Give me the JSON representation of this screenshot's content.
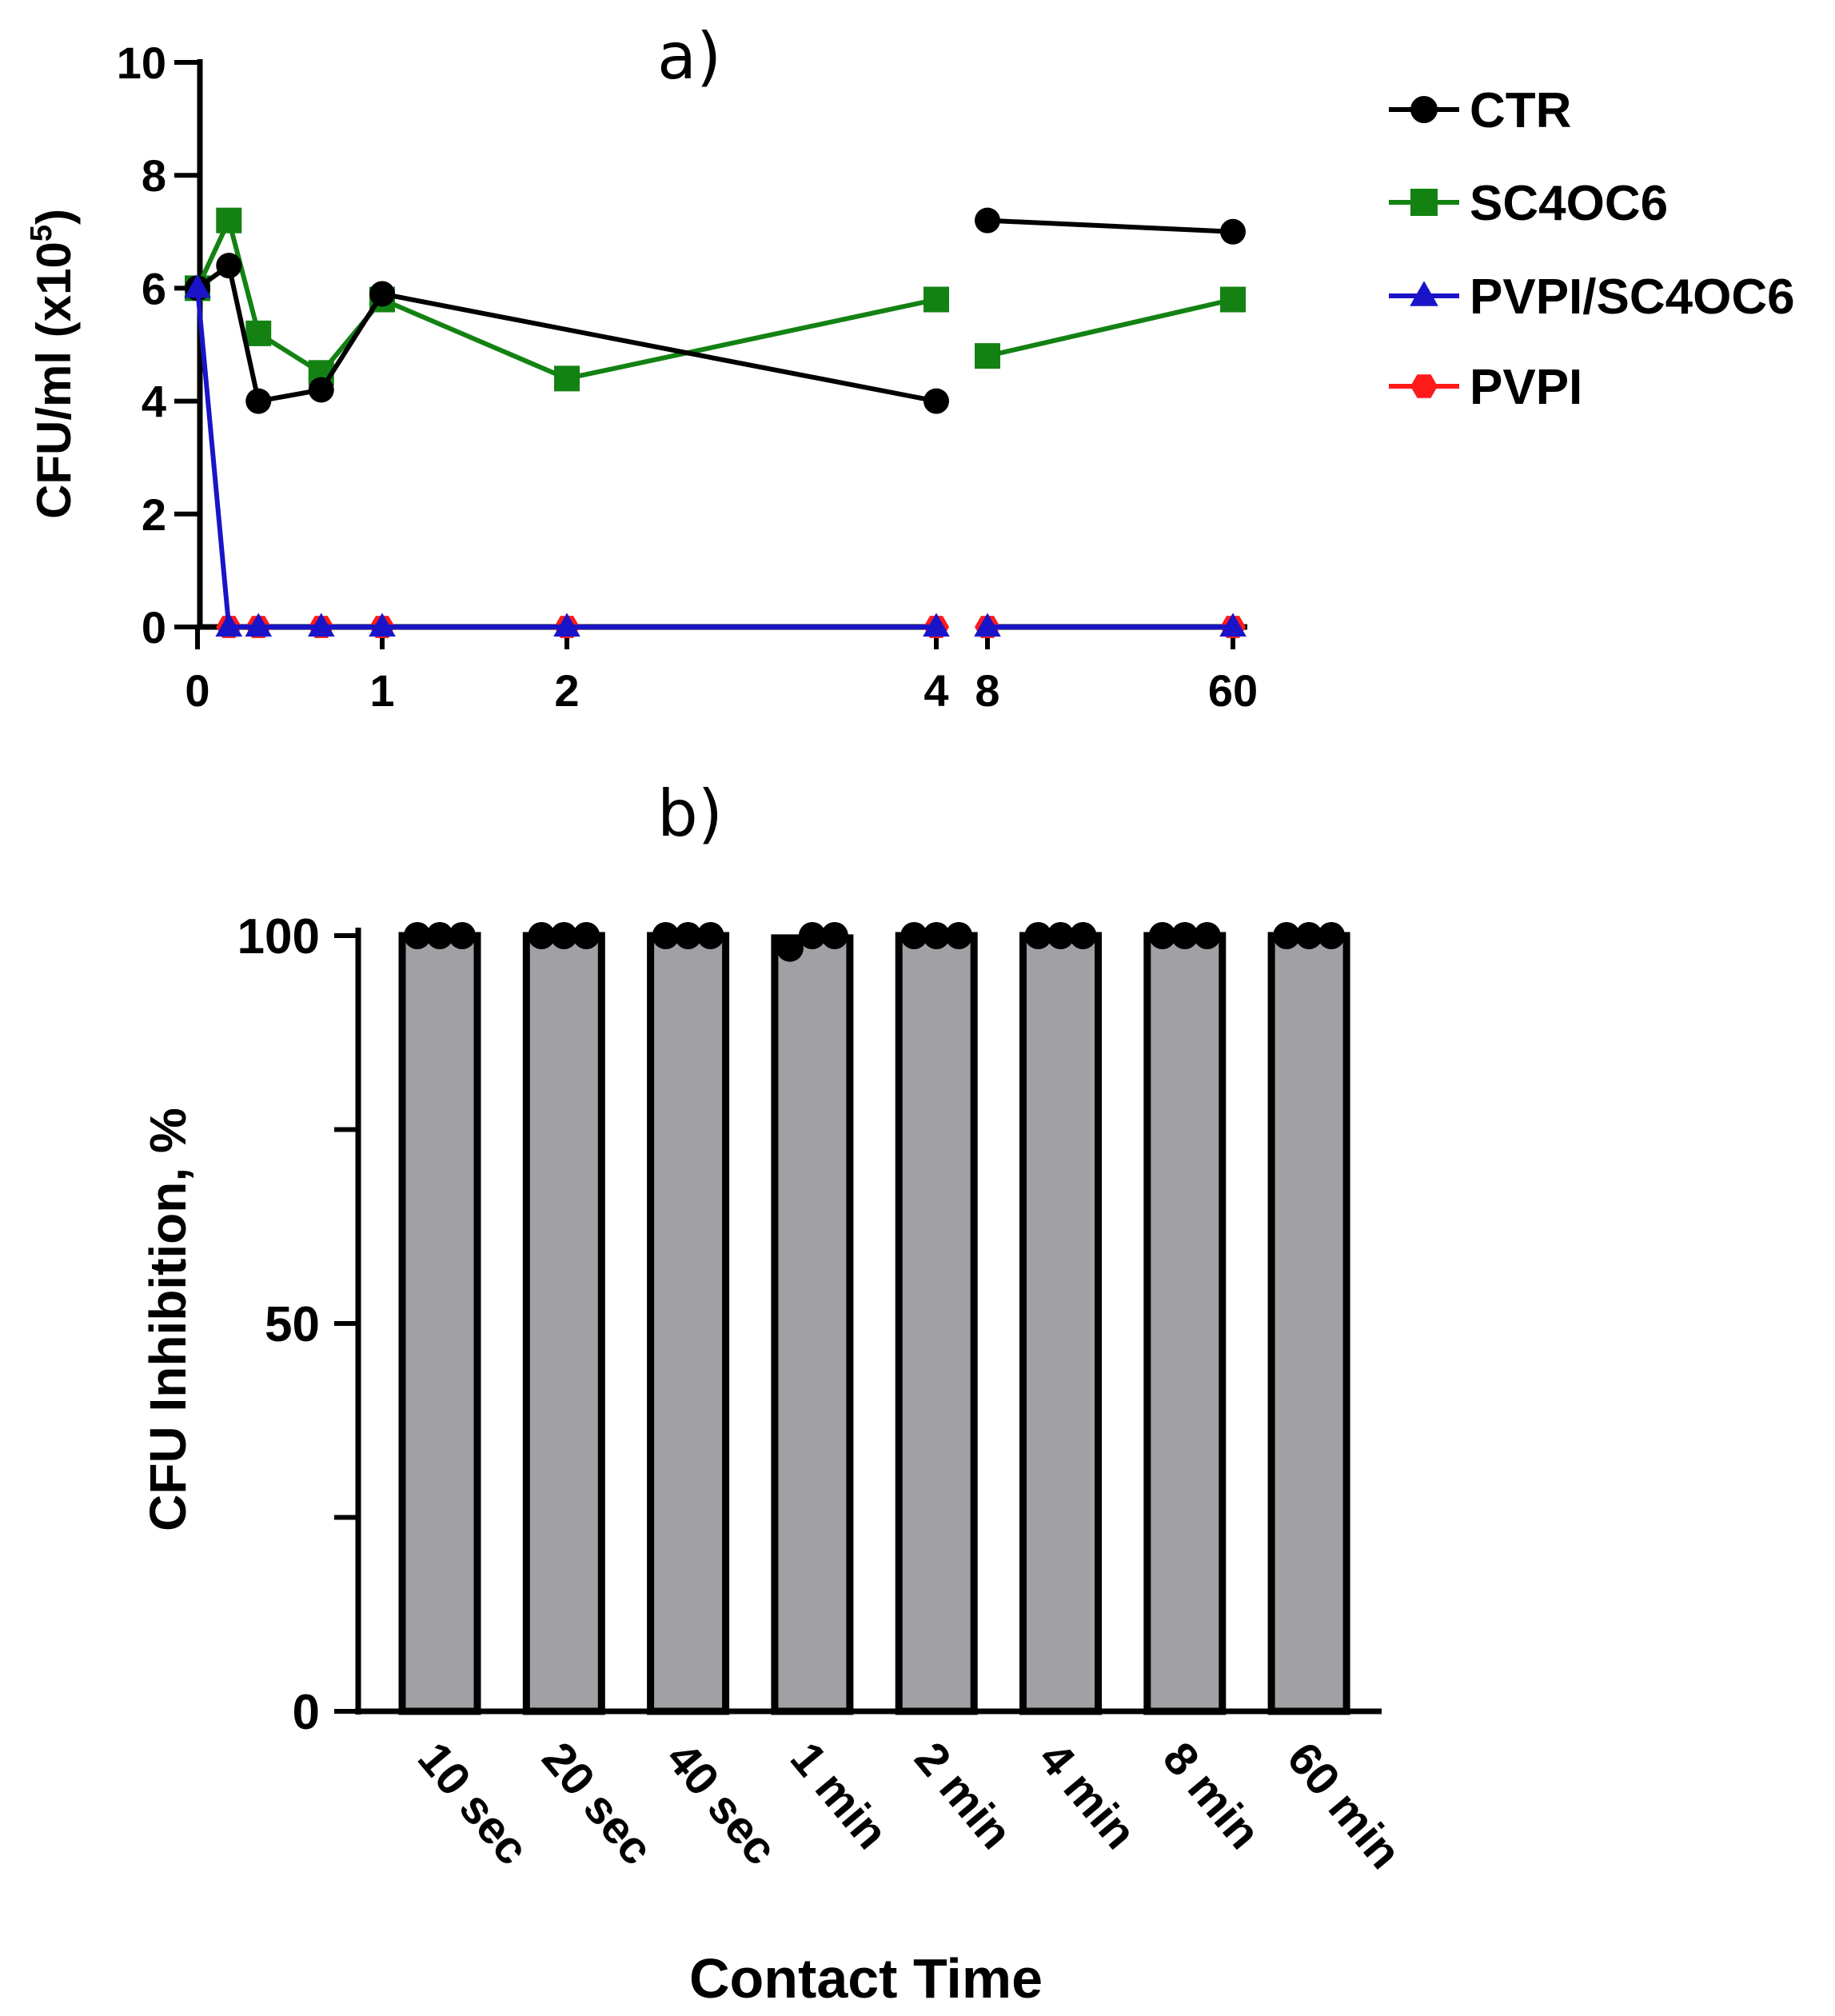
{
  "chart_data": [
    {
      "type": "line",
      "panel_label": "a)",
      "ylabel_main": "CFU/ml (x10",
      "ylabel_sup": "5",
      "ylabel_close": ")",
      "xlabel": "",
      "ylim": [
        0,
        10
      ],
      "yticks": [
        "0",
        "2",
        "4",
        "6",
        "8",
        "10"
      ],
      "x_segment_one": {
        "xlim": [
          0,
          4
        ],
        "ticks": [
          {
            "value": 0,
            "label": "0"
          },
          {
            "value": 1,
            "label": "1"
          },
          {
            "value": 2,
            "label": "2"
          },
          {
            "value": 4,
            "label": "4"
          }
        ]
      },
      "x_segment_two": {
        "xlim": [
          8,
          60
        ],
        "ticks": [
          {
            "value": 8,
            "label": "8"
          },
          {
            "value": 60,
            "label": "60"
          }
        ]
      },
      "legend_position": "right",
      "series": [
        {
          "name": "CTR",
          "color": "#000000",
          "marker": "circle",
          "points": [
            [
              0,
              6.0
            ],
            [
              0.17,
              6.4
            ],
            [
              0.33,
              4.0
            ],
            [
              0.67,
              4.2
            ],
            [
              1,
              5.9
            ],
            [
              4,
              4.0
            ]
          ],
          "points_segment_two": [
            [
              8,
              7.2
            ],
            [
              60,
              7.0
            ]
          ]
        },
        {
          "name": "SC4OC6",
          "color": "#138213",
          "marker": "square",
          "points": [
            [
              0,
              6.0
            ],
            [
              0.17,
              7.2
            ],
            [
              0.33,
              5.2
            ],
            [
              0.67,
              4.5
            ],
            [
              1,
              5.8
            ],
            [
              2,
              4.4
            ],
            [
              4,
              5.8
            ]
          ],
          "points_segment_two": [
            [
              8,
              4.8
            ],
            [
              60,
              5.8
            ]
          ]
        },
        {
          "name": "PVPI/SC4OC6",
          "color": "#1a14c8",
          "marker": "triangle",
          "points": [
            [
              0,
              6.0
            ],
            [
              0.17,
              0
            ],
            [
              0.33,
              0
            ],
            [
              0.67,
              0
            ],
            [
              1,
              0
            ],
            [
              2,
              0
            ],
            [
              4,
              0
            ]
          ],
          "points_segment_two": [
            [
              8,
              0
            ],
            [
              60,
              0
            ]
          ]
        },
        {
          "name": "PVPI",
          "color": "#ff1a1a",
          "marker": "hexagon",
          "points": [
            [
              0.17,
              0
            ],
            [
              0.33,
              0
            ],
            [
              0.67,
              0
            ],
            [
              1,
              0
            ],
            [
              2,
              0
            ],
            [
              4,
              0
            ]
          ],
          "points_segment_two": [
            [
              8,
              0
            ],
            [
              60,
              0
            ]
          ]
        }
      ]
    },
    {
      "type": "bar",
      "panel_label": "b)",
      "xlabel": "Contact Time",
      "ylabel": "CFU Inhibition, %",
      "ylim": [
        0,
        100
      ],
      "yticks": [
        0,
        25,
        50,
        75,
        100
      ],
      "ytick_labels": [
        "0",
        "",
        "50",
        "",
        "100"
      ],
      "bar_color": "#a1a0a5",
      "categories": [
        "10 sec",
        "20 sec",
        "40 sec",
        "1 min",
        "2 min",
        "4 min",
        "8 min",
        "60 min"
      ],
      "values": [
        100,
        100,
        100,
        99.7,
        100,
        100,
        100,
        100
      ],
      "replicates": [
        [
          100,
          100,
          100
        ],
        [
          100,
          100,
          100
        ],
        [
          100,
          100,
          100
        ],
        [
          99,
          100,
          100
        ],
        [
          100,
          100,
          100
        ],
        [
          100,
          100,
          100
        ],
        [
          100,
          100,
          100
        ],
        [
          100,
          100,
          100
        ]
      ]
    }
  ]
}
